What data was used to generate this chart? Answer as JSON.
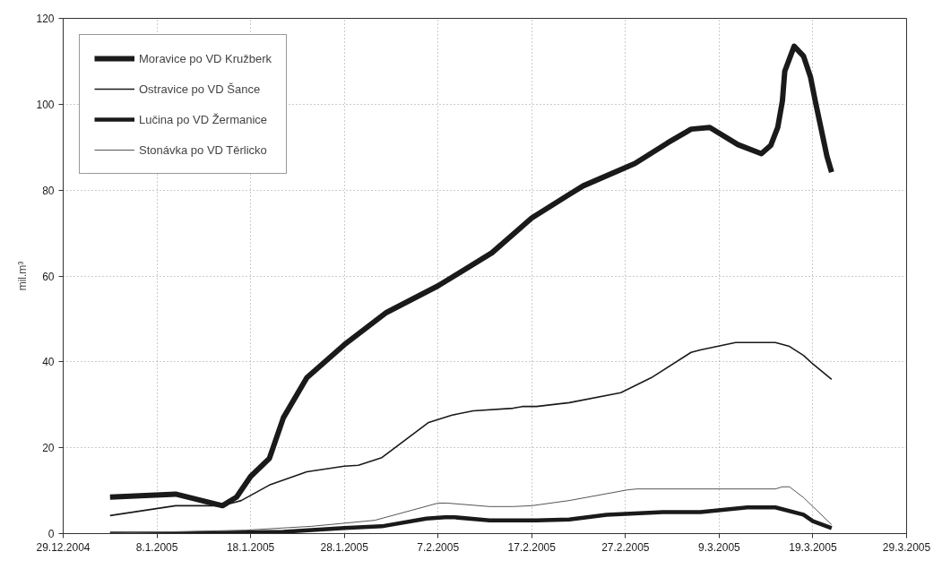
{
  "chart_data": {
    "type": "line",
    "ylabel": "mil.m³",
    "xlim": [
      "2004-12-29",
      "2005-03-29"
    ],
    "ylim": [
      0,
      120
    ],
    "xticks": [
      {
        "value": "2004-12-29",
        "label": "29.12.2004"
      },
      {
        "value": "2005-01-08",
        "label": "8.1.2005"
      },
      {
        "value": "2005-01-18",
        "label": "18.1.2005"
      },
      {
        "value": "2005-01-28",
        "label": "28.1.2005"
      },
      {
        "value": "2005-02-07",
        "label": "7.2.2005"
      },
      {
        "value": "2005-02-17",
        "label": "17.2.2005"
      },
      {
        "value": "2005-02-27",
        "label": "27.2.2005"
      },
      {
        "value": "2005-03-09",
        "label": "9.3.2005"
      },
      {
        "value": "2005-03-19",
        "label": "19.3.2005"
      },
      {
        "value": "2005-03-29",
        "label": "29.3.2005"
      }
    ],
    "yticks": [
      0,
      20,
      40,
      60,
      80,
      100,
      120
    ],
    "grid": true,
    "legend": "top left",
    "marker": "none",
    "line_style": "solid",
    "series": [
      {
        "name": "Moravice po VD Kružberk",
        "color": "#1a1a1a",
        "x": [
          "2005-01-03",
          "2005-01-10",
          "2005-01-15",
          "2005-01-16T12:00",
          "2005-01-18",
          "2005-01-20",
          "2005-01-21T12:00",
          "2005-01-24",
          "2005-01-28",
          "2005-02-01T12:00",
          "2005-02-07",
          "2005-02-12T18:00",
          "2005-02-17",
          "2005-02-21",
          "2005-02-22T12:00",
          "2005-02-28",
          "2005-03-03T12:00",
          "2005-03-06",
          "2005-03-08",
          "2005-03-11",
          "2005-03-13T12:00",
          "2005-03-14T12:00",
          "2005-03-15T06:00",
          "2005-03-15T18:00",
          "2005-03-16",
          "2005-03-17",
          "2005-03-18",
          "2005-03-18T18:00",
          "2005-03-19T06:00",
          "2005-03-20T12:00",
          "2005-03-21"
        ],
        "values": [
          8.5,
          9.2,
          6.5,
          8.5,
          13.3,
          17.5,
          27,
          36.3,
          44,
          51.5,
          57.7,
          65.4,
          73.5,
          79,
          81,
          86.2,
          91,
          94.2,
          94.6,
          90.6,
          88.5,
          90.4,
          94.6,
          100.8,
          107.7,
          113.5,
          111.2,
          106.3,
          100.8,
          87.9,
          84.2
        ]
      },
      {
        "name": "Ostravice po VD Šance",
        "color": "#1a1a1a",
        "x": [
          "2005-01-03",
          "2005-01-10",
          "2005-01-15",
          "2005-01-17",
          "2005-01-20",
          "2005-01-24",
          "2005-01-28",
          "2005-01-29T12:00",
          "2005-02-01",
          "2005-02-06",
          "2005-02-08T12:00",
          "2005-02-10T18:00",
          "2005-02-15",
          "2005-02-16",
          "2005-02-17T12:00",
          "2005-02-21",
          "2005-02-26T12:00",
          "2005-03-01T18:00",
          "2005-03-06",
          "2005-03-07",
          "2005-03-10T18:00",
          "2005-03-15",
          "2005-03-16T12:00",
          "2005-03-18",
          "2005-03-19",
          "2005-03-21"
        ],
        "values": [
          4.2,
          6.5,
          6.5,
          7.7,
          11.3,
          14.4,
          15.7,
          15.9,
          17.7,
          25.9,
          27.6,
          28.6,
          29.2,
          29.6,
          29.6,
          30.5,
          32.8,
          36.3,
          42.2,
          42.8,
          44.5,
          44.5,
          43.6,
          41.5,
          39.5,
          35.9
        ]
      },
      {
        "name": "Lučina po VD Žermanice",
        "color": "#1a1a1a",
        "x": [
          "2005-01-03",
          "2005-01-10",
          "2005-01-21T12:00",
          "2005-01-28",
          "2005-02-01",
          "2005-02-05T18:00",
          "2005-02-07T18:00",
          "2005-02-08T18:00",
          "2005-02-12T12:00",
          "2005-02-17T12:00",
          "2005-02-21",
          "2005-02-25",
          "2005-03-03",
          "2005-03-07",
          "2005-03-12",
          "2005-03-15",
          "2005-03-18",
          "2005-03-19",
          "2005-03-21"
        ],
        "values": [
          0,
          0,
          0.4,
          1.3,
          1.7,
          3.5,
          3.8,
          3.8,
          3.1,
          3.1,
          3.3,
          4.4,
          5.0,
          5.0,
          6.1,
          6.1,
          4.4,
          2.9,
          1.3
        ]
      },
      {
        "name": "Stonávka po VD Těrlicko",
        "color": "#555555",
        "x": [
          "2005-01-03",
          "2005-01-17T12:00",
          "2005-01-24T12:00",
          "2005-01-31T06:00",
          "2005-02-07",
          "2005-02-08",
          "2005-02-12T12:00",
          "2005-02-15",
          "2005-02-17",
          "2005-02-21",
          "2005-02-27T06:00",
          "2005-02-28T06:00",
          "2005-03-15",
          "2005-03-15T18:00",
          "2005-03-16T12:00",
          "2005-03-18",
          "2005-03-21"
        ],
        "values": [
          0.1,
          0.8,
          1.7,
          3.1,
          7.1,
          7.1,
          6.3,
          6.3,
          6.5,
          7.7,
          10.2,
          10.4,
          10.4,
          10.9,
          10.9,
          8.4,
          2.1
        ]
      }
    ]
  }
}
